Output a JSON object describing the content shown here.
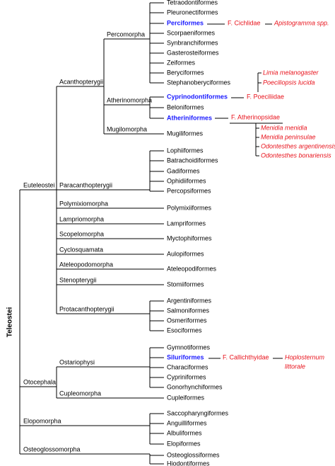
{
  "root": "Teleostei",
  "clades": [
    "Euteleostei",
    "Acanthopterygii",
    "Percomorpha",
    "Atherinomorpha",
    "Mugilomorpha",
    "Paracanthopterygii",
    "Polymixiomorpha",
    "Lampriomorpha",
    "Scopelomorpha",
    "Cyclosquamata",
    "Ateleopodomorpha",
    "Stenopterygii",
    "Protacanthopterygii",
    "Otocephala",
    "Ostariophysi",
    "Cupleomorpha",
    "Elopomorpha",
    "Osteoglossomorpha"
  ],
  "orders": [
    "Tetraodontiformes",
    "Pleuronectiformes",
    "Perciformes",
    "Scorpaeniformes",
    "Synbranchiformes",
    "Gasterosteiformes",
    "Zeiformes",
    "Beryciformes",
    "Stephanoberyciformes",
    "Cyprinodontiformes",
    "Beloniformes",
    "Atheriniformes",
    "Mugiliformes",
    "Lophiiformes",
    "Batrachoidiformes",
    "Gadiformes",
    "Ophidiiformes",
    "Percopsiformes",
    "Polymixiiformes",
    "Lampriformes",
    "Myctophiformes",
    "Aulopiformes",
    "Ateleopodiformes",
    "Stomiiformes",
    "Argentiniformes",
    "Salmoniformes",
    "Osmeriformes",
    "Esociformes",
    "Gymnotiformes",
    "Siluriformes",
    "Characiformes",
    "Cypriniformes",
    "Gonorhynchiformes",
    "Cupleiformes",
    "Saccopharyngiformes",
    "Anguilliformes",
    "Albuliformes",
    "Elopiformes",
    "Osteoglossiformes",
    "Hiodontiformes"
  ],
  "families": [
    "F. Cichlidae",
    "F. Poeciliidae",
    "F. Atherinopsidae",
    "F. Callichthyidae"
  ],
  "species": [
    "Apistogramma spp.",
    "Limia melanogaster",
    "Poeciliopsis lucida",
    "Menidia menidia",
    "Menidia peninsulae",
    "Odontesthes argentinensis",
    "Odontesthes bonariensis",
    "Hoplosternum",
    "littorale"
  ]
}
